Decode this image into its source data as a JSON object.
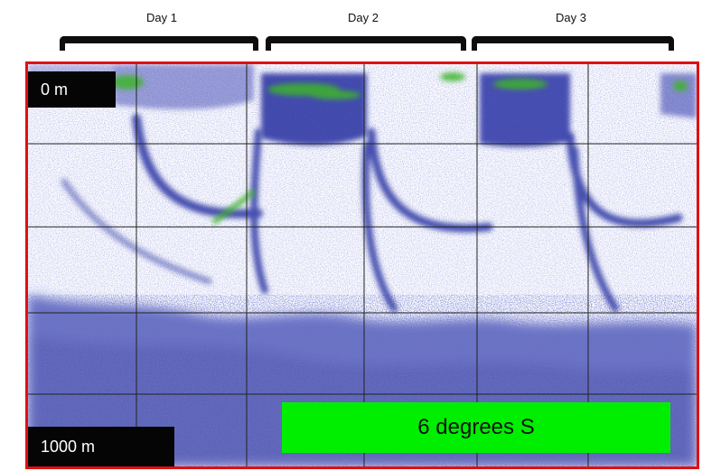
{
  "days": [
    {
      "label": "Day 1"
    },
    {
      "label": "Day 2"
    },
    {
      "label": "Day 3"
    }
  ],
  "echogram": {
    "top_depth_label": "0 m",
    "bottom_depth_label": "1000  m",
    "region_label": "6 degrees S",
    "colors": {
      "frame": "#e01010",
      "backscatter_low": "#7b86d2",
      "backscatter_mid": "#2832a6",
      "backscatter_high": "#3cb42c",
      "label_background": "#050505",
      "region_background": "#00ee00"
    }
  }
}
